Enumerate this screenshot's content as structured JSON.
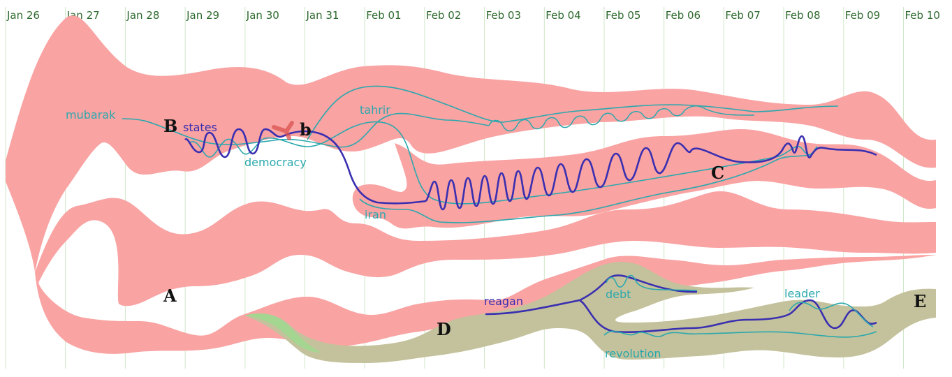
{
  "chart_data": {
    "type": "area",
    "title": "",
    "xlabel": "",
    "ylabel": "",
    "categories": [
      "Jan 26",
      "Jan 27",
      "Jan 28",
      "Jan 29",
      "Jan 30",
      "Jan 31",
      "Feb 01",
      "Feb 02",
      "Feb 03",
      "Feb 04",
      "Feb 05",
      "Feb 06",
      "Feb 07",
      "Feb 08",
      "Feb 09",
      "Feb 10"
    ],
    "grid": true,
    "streams": [
      {
        "group": "main",
        "color": "#f9a3a3"
      },
      {
        "group": "secondary",
        "color": "#c4c29c",
        "start_color": "#9fd88f"
      }
    ],
    "topics": [
      {
        "label": "mubarak",
        "color": "#2aa8ad"
      },
      {
        "label": "states",
        "color": "#3a2fb0"
      },
      {
        "label": "democracy",
        "color": "#2aa8ad"
      },
      {
        "label": "tahrir",
        "color": "#2aa8ad"
      },
      {
        "label": "iran",
        "color": "#2aa8ad"
      },
      {
        "label": "reagan",
        "color": "#3a2fb0"
      },
      {
        "label": "debt",
        "color": "#2aa8ad"
      },
      {
        "label": "revolution",
        "color": "#2aa8ad"
      },
      {
        "label": "leader",
        "color": "#2aa8ad"
      }
    ],
    "annotations": [
      "A",
      "B",
      "b",
      "C",
      "D",
      "E"
    ]
  }
}
